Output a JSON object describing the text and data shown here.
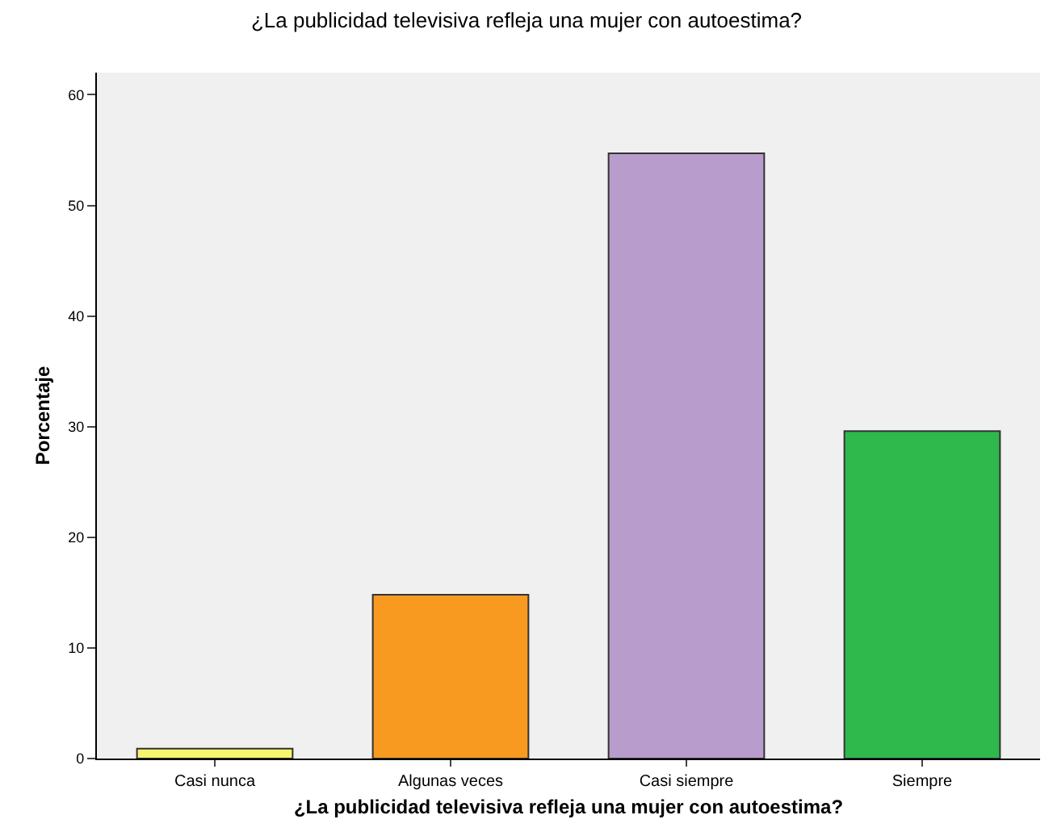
{
  "chart_data": {
    "type": "bar",
    "title": "¿La publicidad televisiva refleja una mujer con autoestima?",
    "xlabel": "¿La publicidad televisiva refleja una mujer con autoestima?",
    "ylabel": "Porcentaje",
    "categories": [
      "Casi nunca",
      "Algunas veces",
      "Casi siempre",
      "Siempre"
    ],
    "values": [
      0.9,
      14.8,
      54.7,
      29.6
    ],
    "colors": [
      "#f5f56e",
      "#f89a1f",
      "#b89ccb",
      "#2fb84c"
    ],
    "ylim": [
      0,
      62
    ],
    "yticks": [
      0,
      10,
      20,
      30,
      40,
      50,
      60
    ],
    "grid": false
  }
}
